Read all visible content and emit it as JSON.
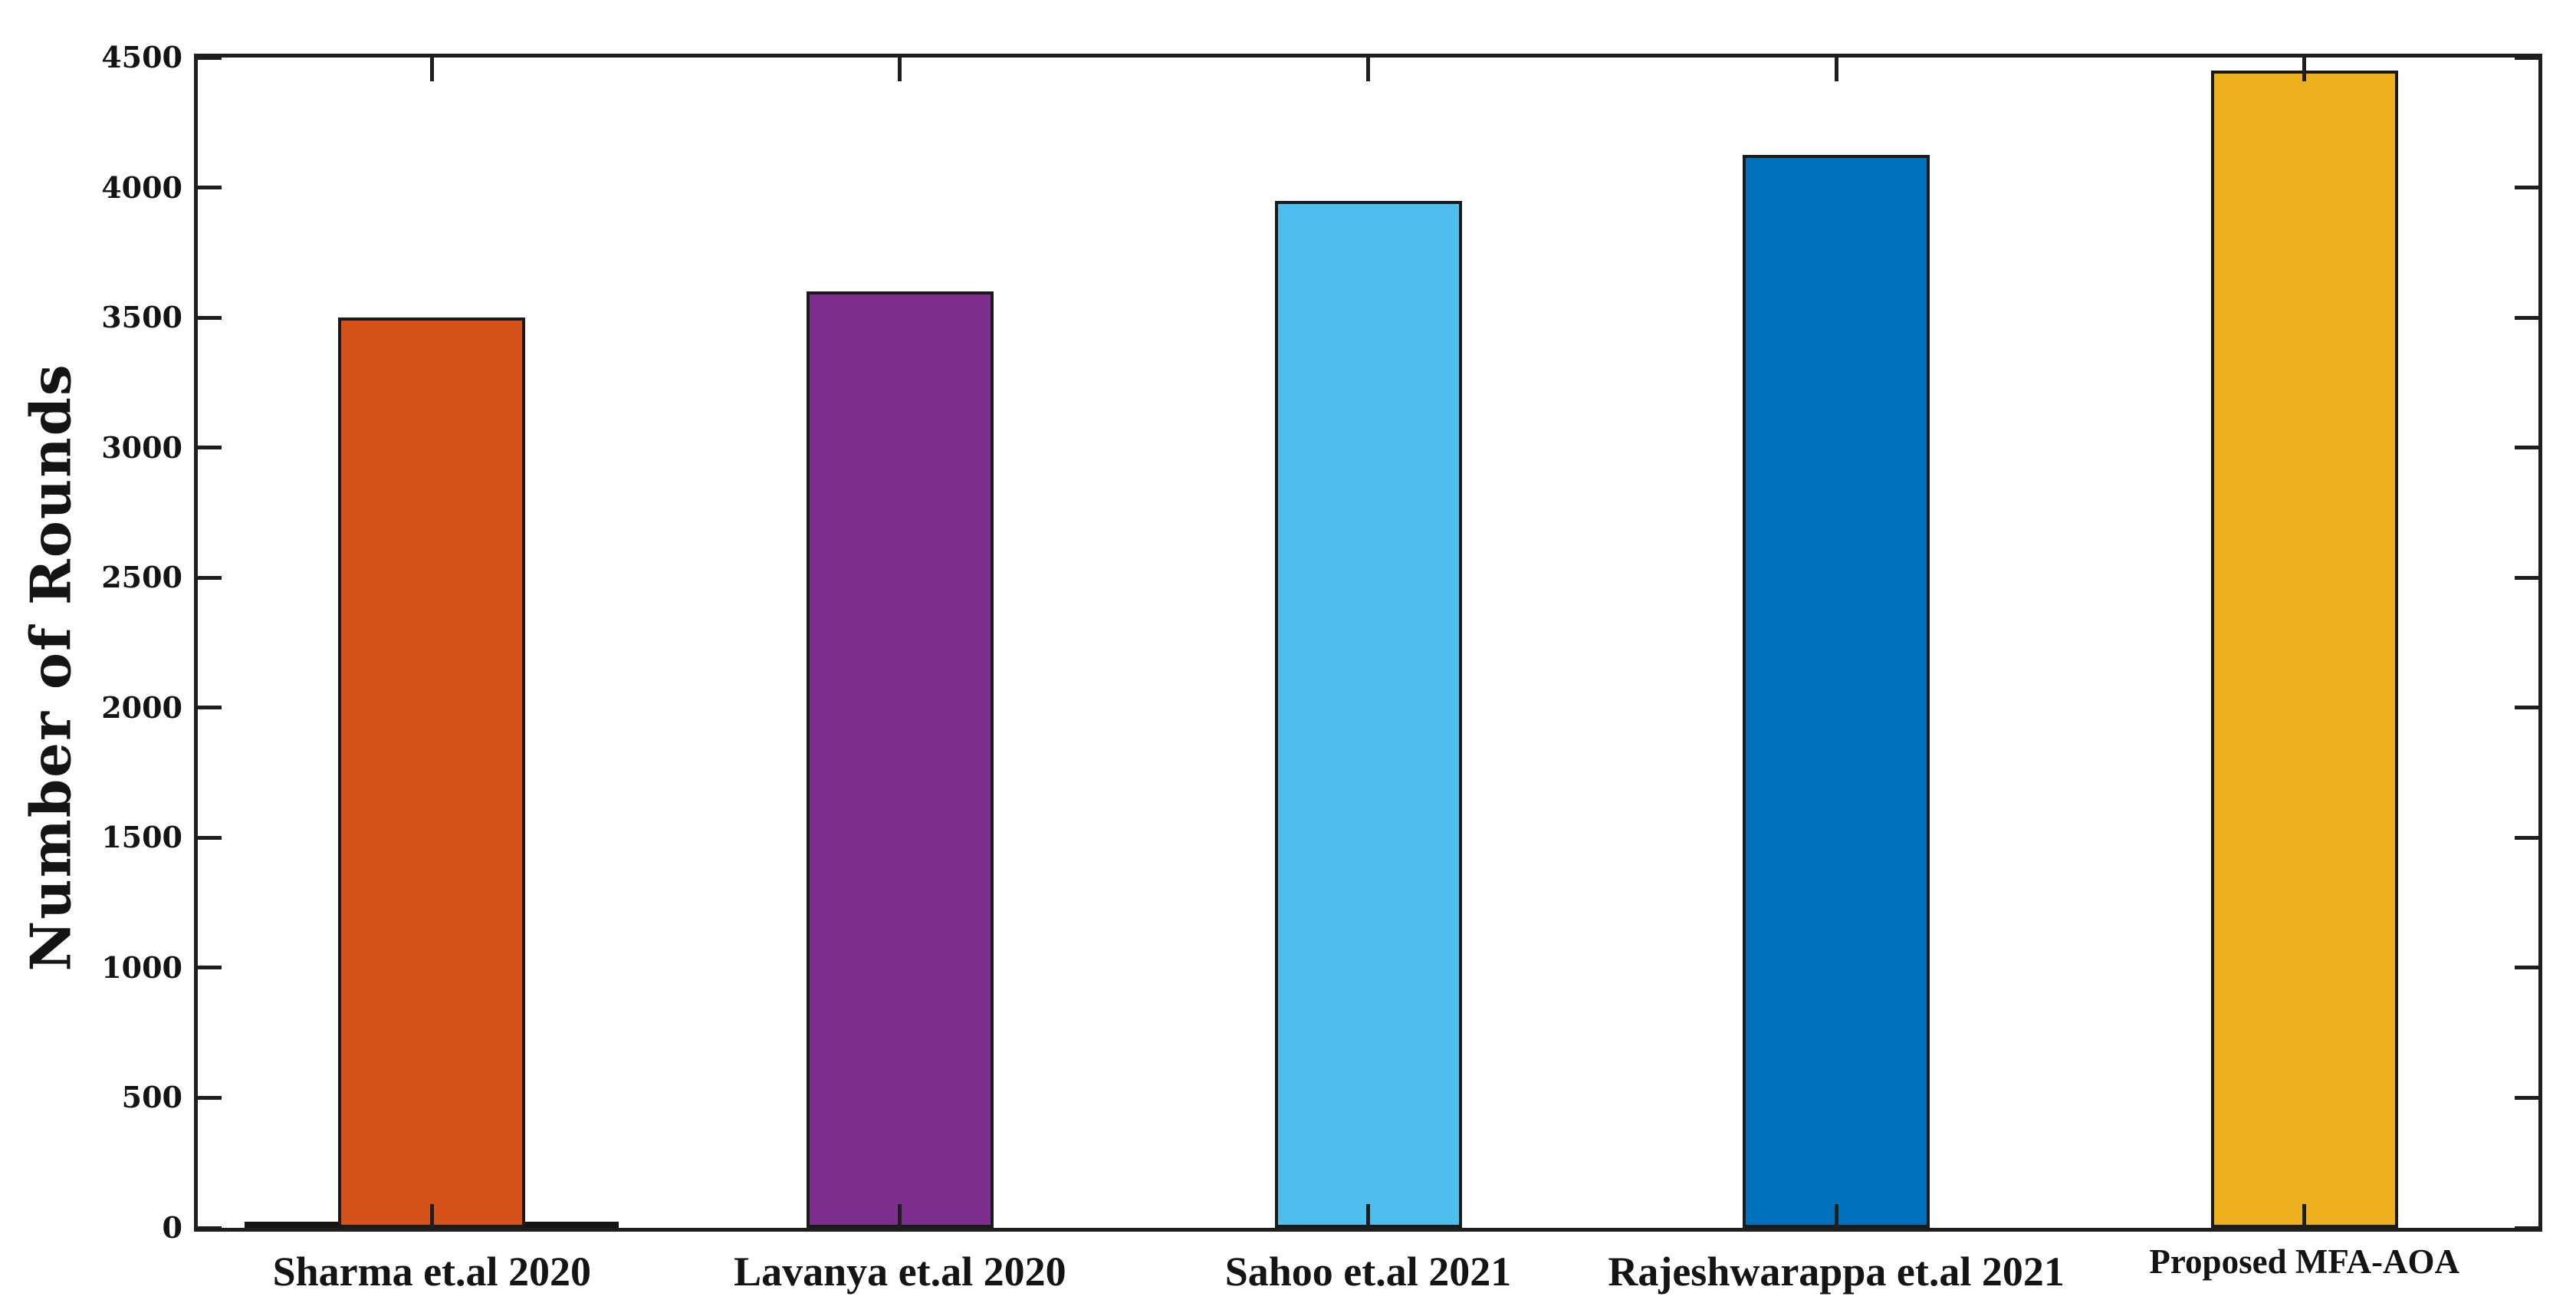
{
  "chart_data": {
    "type": "bar",
    "title": "",
    "xlabel": "",
    "ylabel": "Number of Rounds",
    "categories": [
      "Sharma et.al 2020",
      "Lavanya et.al 2020",
      "Sahoo et.al 2021",
      "Rajeshwarappa et.al 2021",
      "Proposed MFA-AOA"
    ],
    "values": [
      3500,
      3600,
      3950,
      4125,
      4450
    ],
    "bar_colors": [
      "#D5521B",
      "#7E2F8E",
      "#4DBEEE",
      "#0072BD",
      "#EDB120"
    ],
    "bar_edge_color": "#1a1a1a",
    "axis_color": "#1e1e1e",
    "background": "#ffffff",
    "ylim": [
      0,
      4500
    ],
    "yticks": [
      0,
      500,
      1000,
      1500,
      2000,
      2500,
      3000,
      3500,
      4000,
      4500
    ],
    "grid": false,
    "tick_style": "inward-box",
    "annotations": [
      {
        "type": "flat-segment-at-zero",
        "category": "Sharma et.al 2020",
        "value": 0,
        "color": "#151515"
      }
    ]
  }
}
